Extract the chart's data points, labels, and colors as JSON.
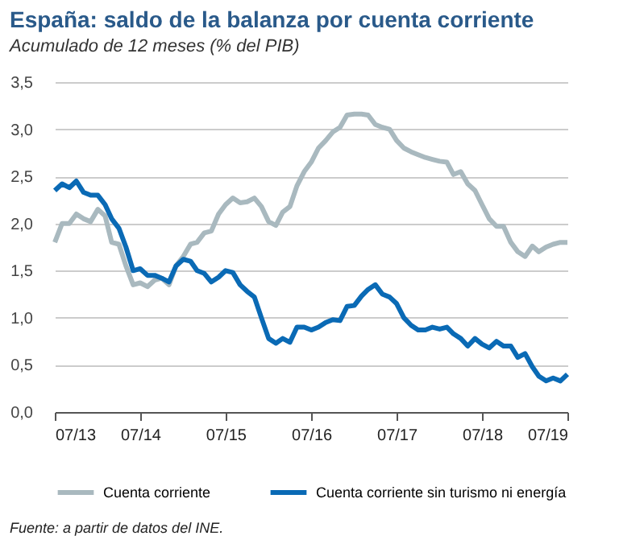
{
  "chart_data": {
    "type": "line",
    "title": "España: saldo de la balanza por cuenta corriente",
    "subtitle": "Acumulado de 12 meses (% del PIB)",
    "x": [
      "2013-07",
      "2013-08",
      "2013-09",
      "2013-10",
      "2013-11",
      "2013-12",
      "2014-01",
      "2014-02",
      "2014-03",
      "2014-04",
      "2014-05",
      "2014-06",
      "2014-07",
      "2014-08",
      "2014-09",
      "2014-10",
      "2014-11",
      "2014-12",
      "2015-01",
      "2015-02",
      "2015-03",
      "2015-04",
      "2015-05",
      "2015-06",
      "2015-07",
      "2015-08",
      "2015-09",
      "2015-10",
      "2015-11",
      "2015-12",
      "2016-01",
      "2016-02",
      "2016-03",
      "2016-04",
      "2016-05",
      "2016-06",
      "2016-07",
      "2016-08",
      "2016-09",
      "2016-10",
      "2016-11",
      "2016-12",
      "2017-01",
      "2017-02",
      "2017-03",
      "2017-04",
      "2017-05",
      "2017-06",
      "2017-07",
      "2017-08",
      "2017-09",
      "2017-10",
      "2017-11",
      "2017-12",
      "2018-01",
      "2018-02",
      "2018-03",
      "2018-04",
      "2018-05",
      "2018-06",
      "2018-07",
      "2018-08",
      "2018-09",
      "2018-10",
      "2018-11",
      "2018-12",
      "2019-01",
      "2019-02",
      "2019-03",
      "2019-04",
      "2019-05",
      "2019-06",
      "2019-07"
    ],
    "series": [
      {
        "name": "Cuenta corriente",
        "color": "#a9b9bf",
        "values": [
          1.8,
          2.0,
          2.0,
          2.1,
          2.05,
          2.02,
          2.15,
          2.08,
          1.8,
          1.78,
          1.55,
          1.35,
          1.37,
          1.33,
          1.4,
          1.42,
          1.35,
          1.55,
          1.65,
          1.78,
          1.8,
          1.9,
          1.92,
          2.1,
          2.2,
          2.27,
          2.22,
          2.23,
          2.27,
          2.18,
          2.02,
          1.98,
          2.12,
          2.18,
          2.4,
          2.55,
          2.65,
          2.8,
          2.88,
          2.97,
          3.02,
          3.15,
          3.16,
          3.16,
          3.15,
          3.05,
          3.02,
          3.0,
          2.88,
          2.8,
          2.76,
          2.73,
          2.7,
          2.68,
          2.66,
          2.65,
          2.52,
          2.55,
          2.42,
          2.35,
          2.2,
          2.05,
          1.97,
          1.97,
          1.8,
          1.7,
          1.65,
          1.76,
          1.7,
          1.75,
          1.78,
          1.8,
          1.8
        ]
      },
      {
        "name": "Cuenta corriente sin turismo ni energía",
        "color": "#0a6ab5",
        "values": [
          2.35,
          2.42,
          2.38,
          2.45,
          2.33,
          2.3,
          2.3,
          2.2,
          2.05,
          1.95,
          1.75,
          1.5,
          1.52,
          1.45,
          1.45,
          1.42,
          1.38,
          1.55,
          1.62,
          1.6,
          1.5,
          1.47,
          1.38,
          1.43,
          1.5,
          1.48,
          1.35,
          1.28,
          1.22,
          1.0,
          0.78,
          0.73,
          0.78,
          0.74,
          0.9,
          0.9,
          0.87,
          0.9,
          0.95,
          0.98,
          0.97,
          1.12,
          1.13,
          1.23,
          1.3,
          1.35,
          1.25,
          1.22,
          1.15,
          1.0,
          0.92,
          0.87,
          0.87,
          0.9,
          0.88,
          0.9,
          0.83,
          0.78,
          0.7,
          0.78,
          0.72,
          0.68,
          0.75,
          0.7,
          0.7,
          0.58,
          0.62,
          0.48,
          0.38,
          0.33,
          0.36,
          0.33,
          0.4
        ]
      }
    ],
    "xlim": [
      "2013-07",
      "2019-07"
    ],
    "xticks": [
      {
        "value": "2013-07",
        "label": "07/13"
      },
      {
        "value": "2014-07",
        "label": "07/14"
      },
      {
        "value": "2015-07",
        "label": "07/15"
      },
      {
        "value": "2016-07",
        "label": "07/16"
      },
      {
        "value": "2017-07",
        "label": "07/17"
      },
      {
        "value": "2018-07",
        "label": "07/18"
      },
      {
        "value": "2019-07",
        "label": "07/19"
      }
    ],
    "ylim": [
      0,
      3.5
    ],
    "yticks": [
      {
        "value": 0,
        "label": "0,0"
      },
      {
        "value": 0.5,
        "label": "0,5"
      },
      {
        "value": 1,
        "label": "1,0"
      },
      {
        "value": 1.5,
        "label": "1,5"
      },
      {
        "value": 2,
        "label": "2,0"
      },
      {
        "value": 2.5,
        "label": "2,5"
      },
      {
        "value": 3,
        "label": "3,0"
      },
      {
        "value": 3.5,
        "label": "3,5"
      }
    ],
    "grid": "y",
    "legend": "bottom",
    "line_style": "solid",
    "marker": "none",
    "annotations": [
      "Fuente: a partir de datos del INE."
    ]
  }
}
